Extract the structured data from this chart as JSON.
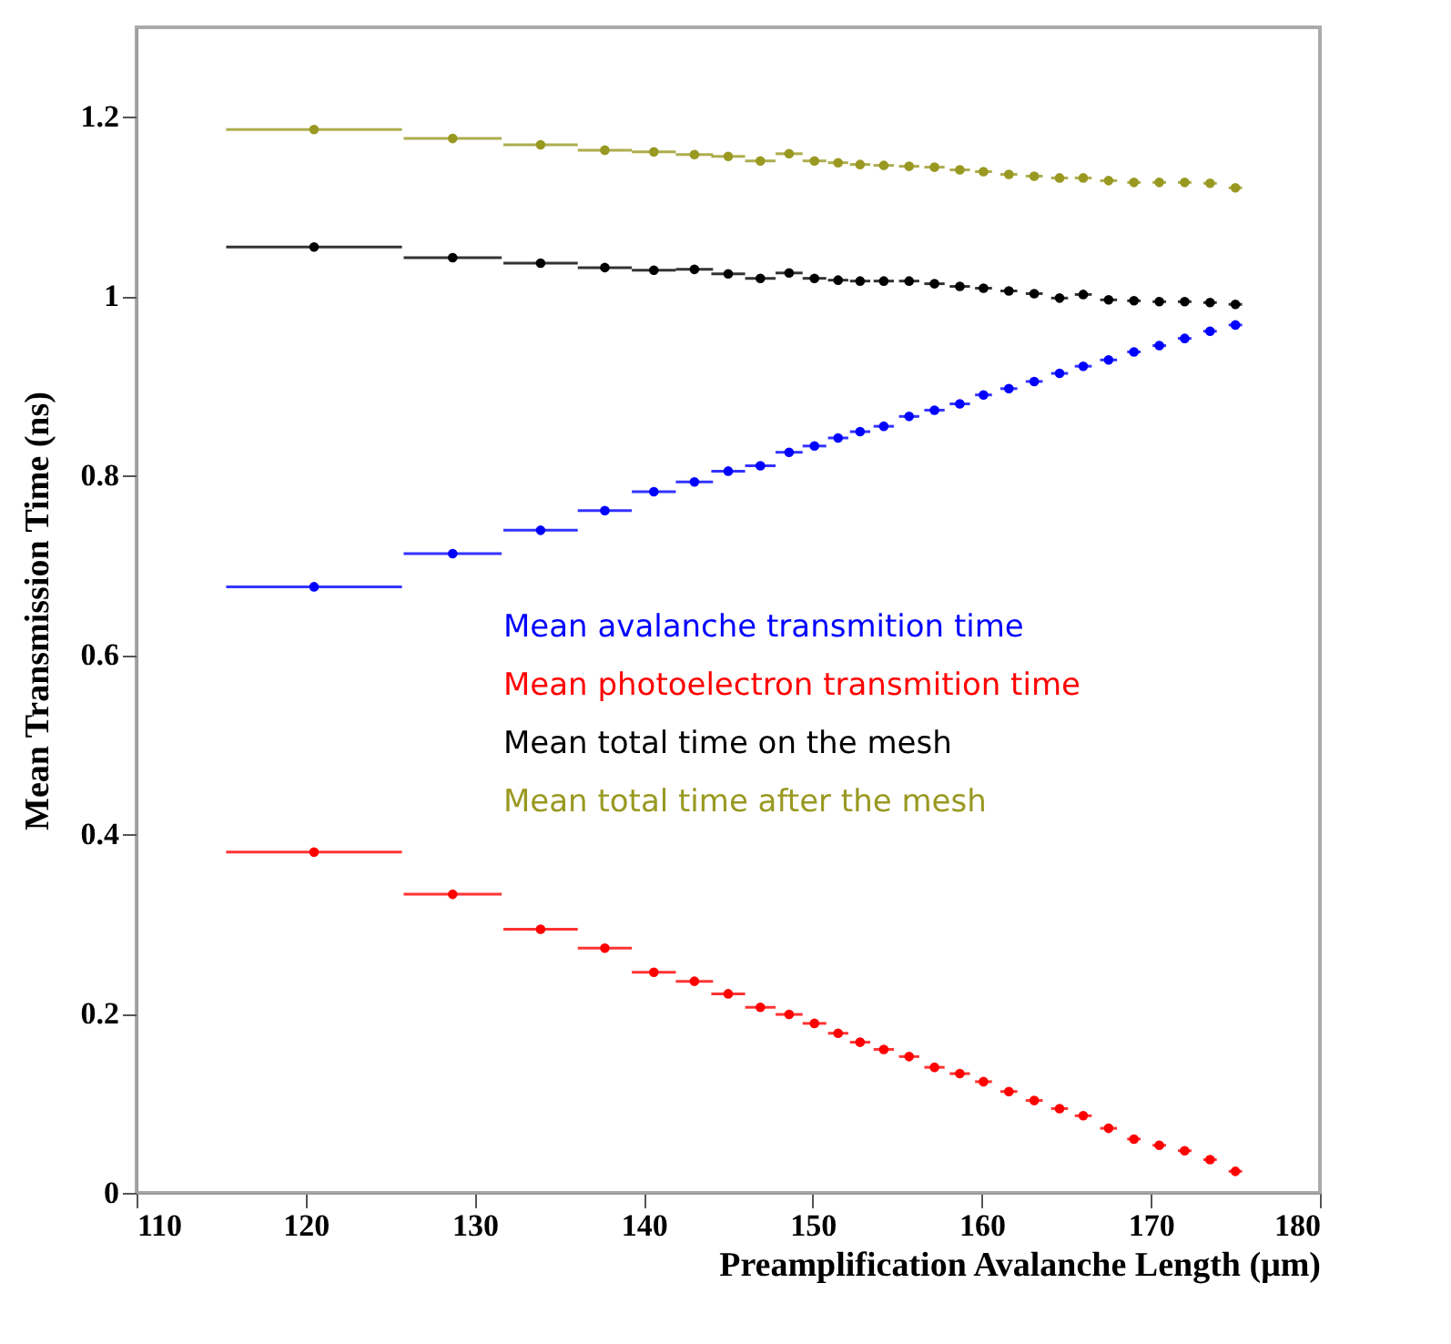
{
  "chart_data": {
    "type": "scatter",
    "xlabel": "Preamplification Avalanche Length (μm)",
    "ylabel": "Mean Transmission Time (ns)",
    "x": [
      120.5,
      128.7,
      133.9,
      137.7,
      140.6,
      143.0,
      145.0,
      146.9,
      148.6,
      150.1,
      151.5,
      152.8,
      154.2,
      155.7,
      157.2,
      158.7,
      160.1,
      161.6,
      163.1,
      164.6,
      166.0,
      167.5,
      169.0,
      170.5,
      172.0,
      173.5,
      175.0
    ],
    "series": [
      {
        "name": "Mean avalanche transmition time",
        "color": "#0000ff",
        "values": [
          0.676,
          0.713,
          0.739,
          0.761,
          0.782,
          0.793,
          0.805,
          0.811,
          0.826,
          0.833,
          0.842,
          0.849,
          0.855,
          0.866,
          0.873,
          0.88,
          0.89,
          0.897,
          0.905,
          0.914,
          0.922,
          0.929,
          0.938,
          0.945,
          0.953,
          0.961,
          0.968
        ],
        "xerrors": [
          5.2,
          2.9,
          2.2,
          1.6,
          1.3,
          1.1,
          1.0,
          0.9,
          0.8,
          0.7,
          0.6,
          0.6,
          0.6,
          0.6,
          0.6,
          0.6,
          0.5,
          0.5,
          0.5,
          0.5,
          0.5,
          0.5,
          0.4,
          0.4,
          0.4,
          0.4,
          0.4
        ]
      },
      {
        "name": "Mean photoelectron transmition time",
        "color": "#ff0000",
        "values": [
          0.38,
          0.333,
          0.294,
          0.273,
          0.246,
          0.236,
          0.222,
          0.207,
          0.199,
          0.189,
          0.178,
          0.168,
          0.16,
          0.152,
          0.14,
          0.133,
          0.124,
          0.113,
          0.103,
          0.094,
          0.086,
          0.072,
          0.06,
          0.053,
          0.047,
          0.037,
          0.024
        ],
        "xerrors": [
          5.2,
          2.9,
          2.2,
          1.6,
          1.3,
          1.1,
          1.0,
          0.9,
          0.8,
          0.7,
          0.6,
          0.6,
          0.6,
          0.6,
          0.6,
          0.6,
          0.5,
          0.5,
          0.5,
          0.5,
          0.5,
          0.5,
          0.4,
          0.4,
          0.4,
          0.4,
          0.4
        ]
      },
      {
        "name": "Mean total time on the mesh",
        "color": "#000000",
        "values": [
          1.055,
          1.043,
          1.037,
          1.032,
          1.029,
          1.03,
          1.025,
          1.02,
          1.026,
          1.02,
          1.018,
          1.017,
          1.017,
          1.017,
          1.014,
          1.011,
          1.009,
          1.006,
          1.003,
          0.998,
          1.002,
          0.996,
          0.995,
          0.994,
          0.994,
          0.993,
          0.991
        ],
        "xerrors": [
          5.2,
          2.9,
          2.2,
          1.6,
          1.3,
          1.1,
          1.0,
          0.9,
          0.8,
          0.7,
          0.6,
          0.6,
          0.6,
          0.6,
          0.6,
          0.6,
          0.5,
          0.5,
          0.5,
          0.5,
          0.5,
          0.5,
          0.4,
          0.4,
          0.4,
          0.4,
          0.4
        ]
      },
      {
        "name": "Mean total time after the mesh",
        "color": "#999922",
        "values": [
          1.186,
          1.176,
          1.169,
          1.163,
          1.161,
          1.158,
          1.156,
          1.151,
          1.159,
          1.151,
          1.149,
          1.147,
          1.146,
          1.145,
          1.144,
          1.141,
          1.139,
          1.136,
          1.134,
          1.132,
          1.132,
          1.129,
          1.127,
          1.127,
          1.127,
          1.126,
          1.121
        ],
        "xerrors": [
          5.2,
          2.9,
          2.2,
          1.6,
          1.3,
          1.1,
          1.0,
          0.9,
          0.8,
          0.7,
          0.6,
          0.6,
          0.6,
          0.6,
          0.6,
          0.6,
          0.5,
          0.5,
          0.5,
          0.5,
          0.5,
          0.5,
          0.4,
          0.4,
          0.4,
          0.4,
          0.4
        ]
      }
    ],
    "xlim": [
      110,
      180
    ],
    "xticks": [
      110,
      120,
      130,
      140,
      150,
      160,
      170,
      180
    ],
    "ylim": [
      0,
      1.3
    ],
    "yticks": [
      0,
      0.2,
      0.4,
      0.6,
      0.8,
      1,
      1.2
    ],
    "marker": "circle",
    "grid": false
  }
}
